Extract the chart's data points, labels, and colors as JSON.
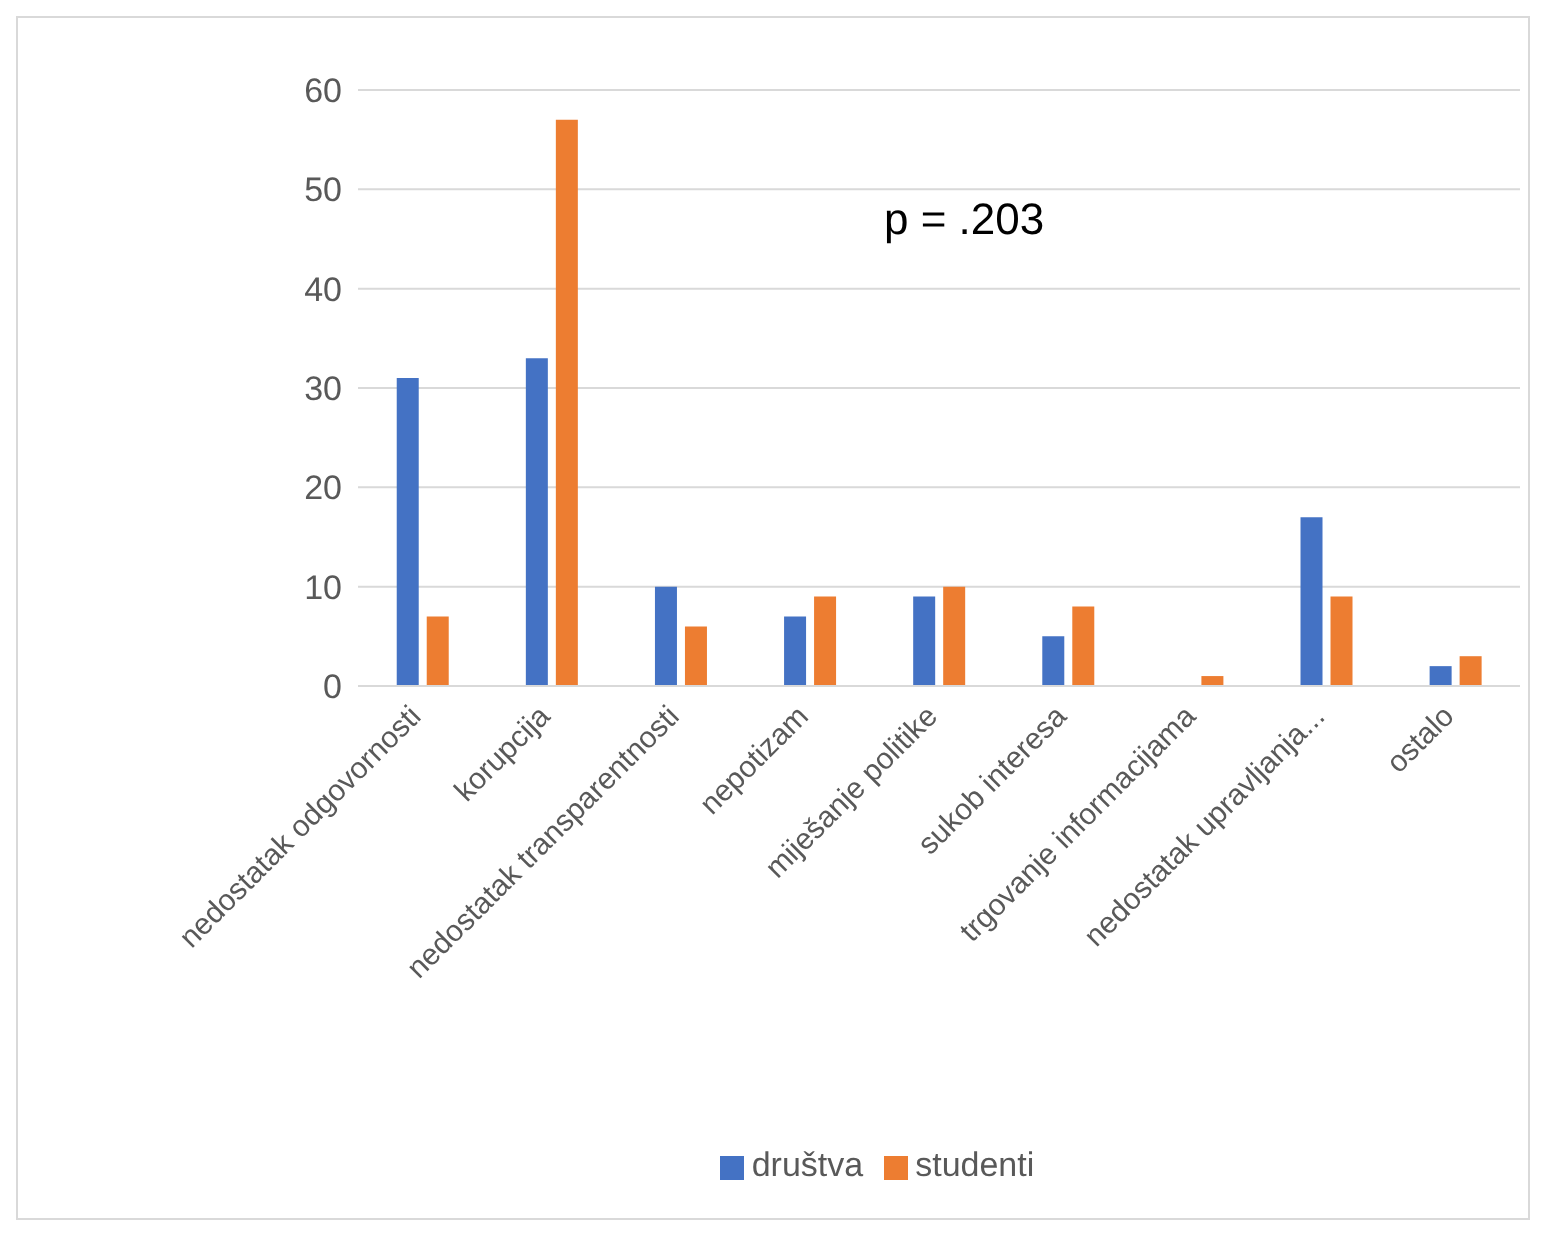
{
  "chart_data": {
    "type": "bar",
    "categories": [
      "nedostatak odgovornosti",
      "korupcija",
      "nedostatak transparentnosti",
      "nepotizam",
      "miješanje politike",
      "sukob interesa",
      "trgovanje informacijama",
      "nedostatak upravljanja...",
      "ostalo"
    ],
    "series": [
      {
        "name": "društva",
        "color": "#4472c4",
        "values": [
          31,
          33,
          10,
          7,
          9,
          5,
          0,
          17,
          2
        ]
      },
      {
        "name": "studenti",
        "color": "#ed7d31",
        "values": [
          7,
          57,
          6,
          9,
          10,
          8,
          1,
          9,
          3
        ]
      }
    ],
    "ylim": [
      0,
      60
    ],
    "yticks": [
      0,
      10,
      20,
      30,
      40,
      50,
      60
    ],
    "grid": "y",
    "legend": "bottom",
    "annotations": [
      "p = .203"
    ]
  }
}
